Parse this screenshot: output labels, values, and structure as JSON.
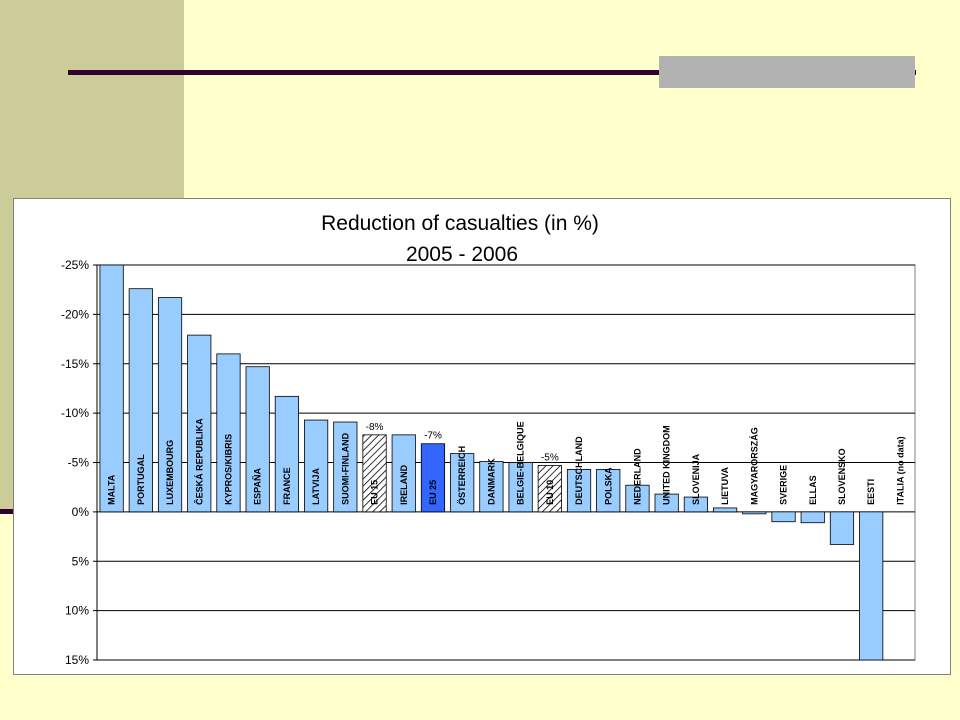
{
  "slide": {
    "colors": {
      "background": "#FFFFCC",
      "sidebar": "#CCCC99",
      "rule": "#330033",
      "rule_block": "#B2B2B2"
    }
  },
  "chart_data": {
    "type": "bar",
    "title": "Reduction of casualties (in %)",
    "subtitle": "2005 -  2006",
    "xlabel": "",
    "ylabel": "",
    "y_axis_inverted": true,
    "ylim": [
      -25,
      15
    ],
    "y_ticks": [
      -25,
      -20,
      -15,
      -10,
      -5,
      0,
      5,
      10,
      15
    ],
    "y_tick_labels": [
      "-25%",
      "-20%",
      "-15%",
      "-10%",
      "-5%",
      "0%",
      "5%",
      "10%",
      "15%"
    ],
    "grid": true,
    "legend": "none",
    "colors": {
      "country": "#99CCFF",
      "eu25": "#3366FF",
      "average_hatched": "#99CCFF",
      "border": "#000000"
    },
    "categories": [
      "MALTA",
      "PORTUGAL",
      "LUXEMBOURG",
      "ČESKÁ REPUBLIKA",
      "KYPROS/KIBRIS",
      "ESPAÑA",
      "FRANCE",
      "LATVIJA",
      "SUOMI-FINLAND",
      "EU 15",
      "IRELAND",
      "EU 25",
      "ÖSTERREICH",
      "DANMARK",
      "BELGIE-BELGIQUE",
      "EU 10",
      "DEUTSCHLAND",
      "POLSKA",
      "NEDERLAND",
      "UNITED KINGDOM",
      "SLOVENIJA",
      "LIETUVA",
      "MAGYARORSZÁG",
      "SVERIGE",
      "ELLAS",
      "SLOVENSKO",
      "EESTI",
      "ITALIA (no data)"
    ],
    "values": [
      -25.0,
      -22.6,
      -21.7,
      -17.9,
      -16.0,
      -14.7,
      -11.7,
      -9.3,
      -9.1,
      -7.8,
      -7.8,
      -6.9,
      -5.9,
      -5.1,
      -5.0,
      -4.7,
      -4.3,
      -4.3,
      -2.7,
      -1.8,
      -1.5,
      -0.4,
      0.2,
      1.0,
      1.1,
      3.3,
      15.0,
      null
    ],
    "styles": [
      "country",
      "country",
      "country",
      "country",
      "country",
      "country",
      "country",
      "country",
      "country",
      "average_hatched",
      "country",
      "eu25",
      "country",
      "country",
      "country",
      "average_hatched",
      "country",
      "country",
      "country",
      "country",
      "country",
      "country",
      "country",
      "country",
      "country",
      "country",
      "country",
      "none"
    ],
    "annotations": [
      {
        "category": "EU 15",
        "text": "-8%"
      },
      {
        "category": "EU 25",
        "text": "-7%"
      },
      {
        "category": "EU 10",
        "text": "-5%"
      }
    ]
  }
}
